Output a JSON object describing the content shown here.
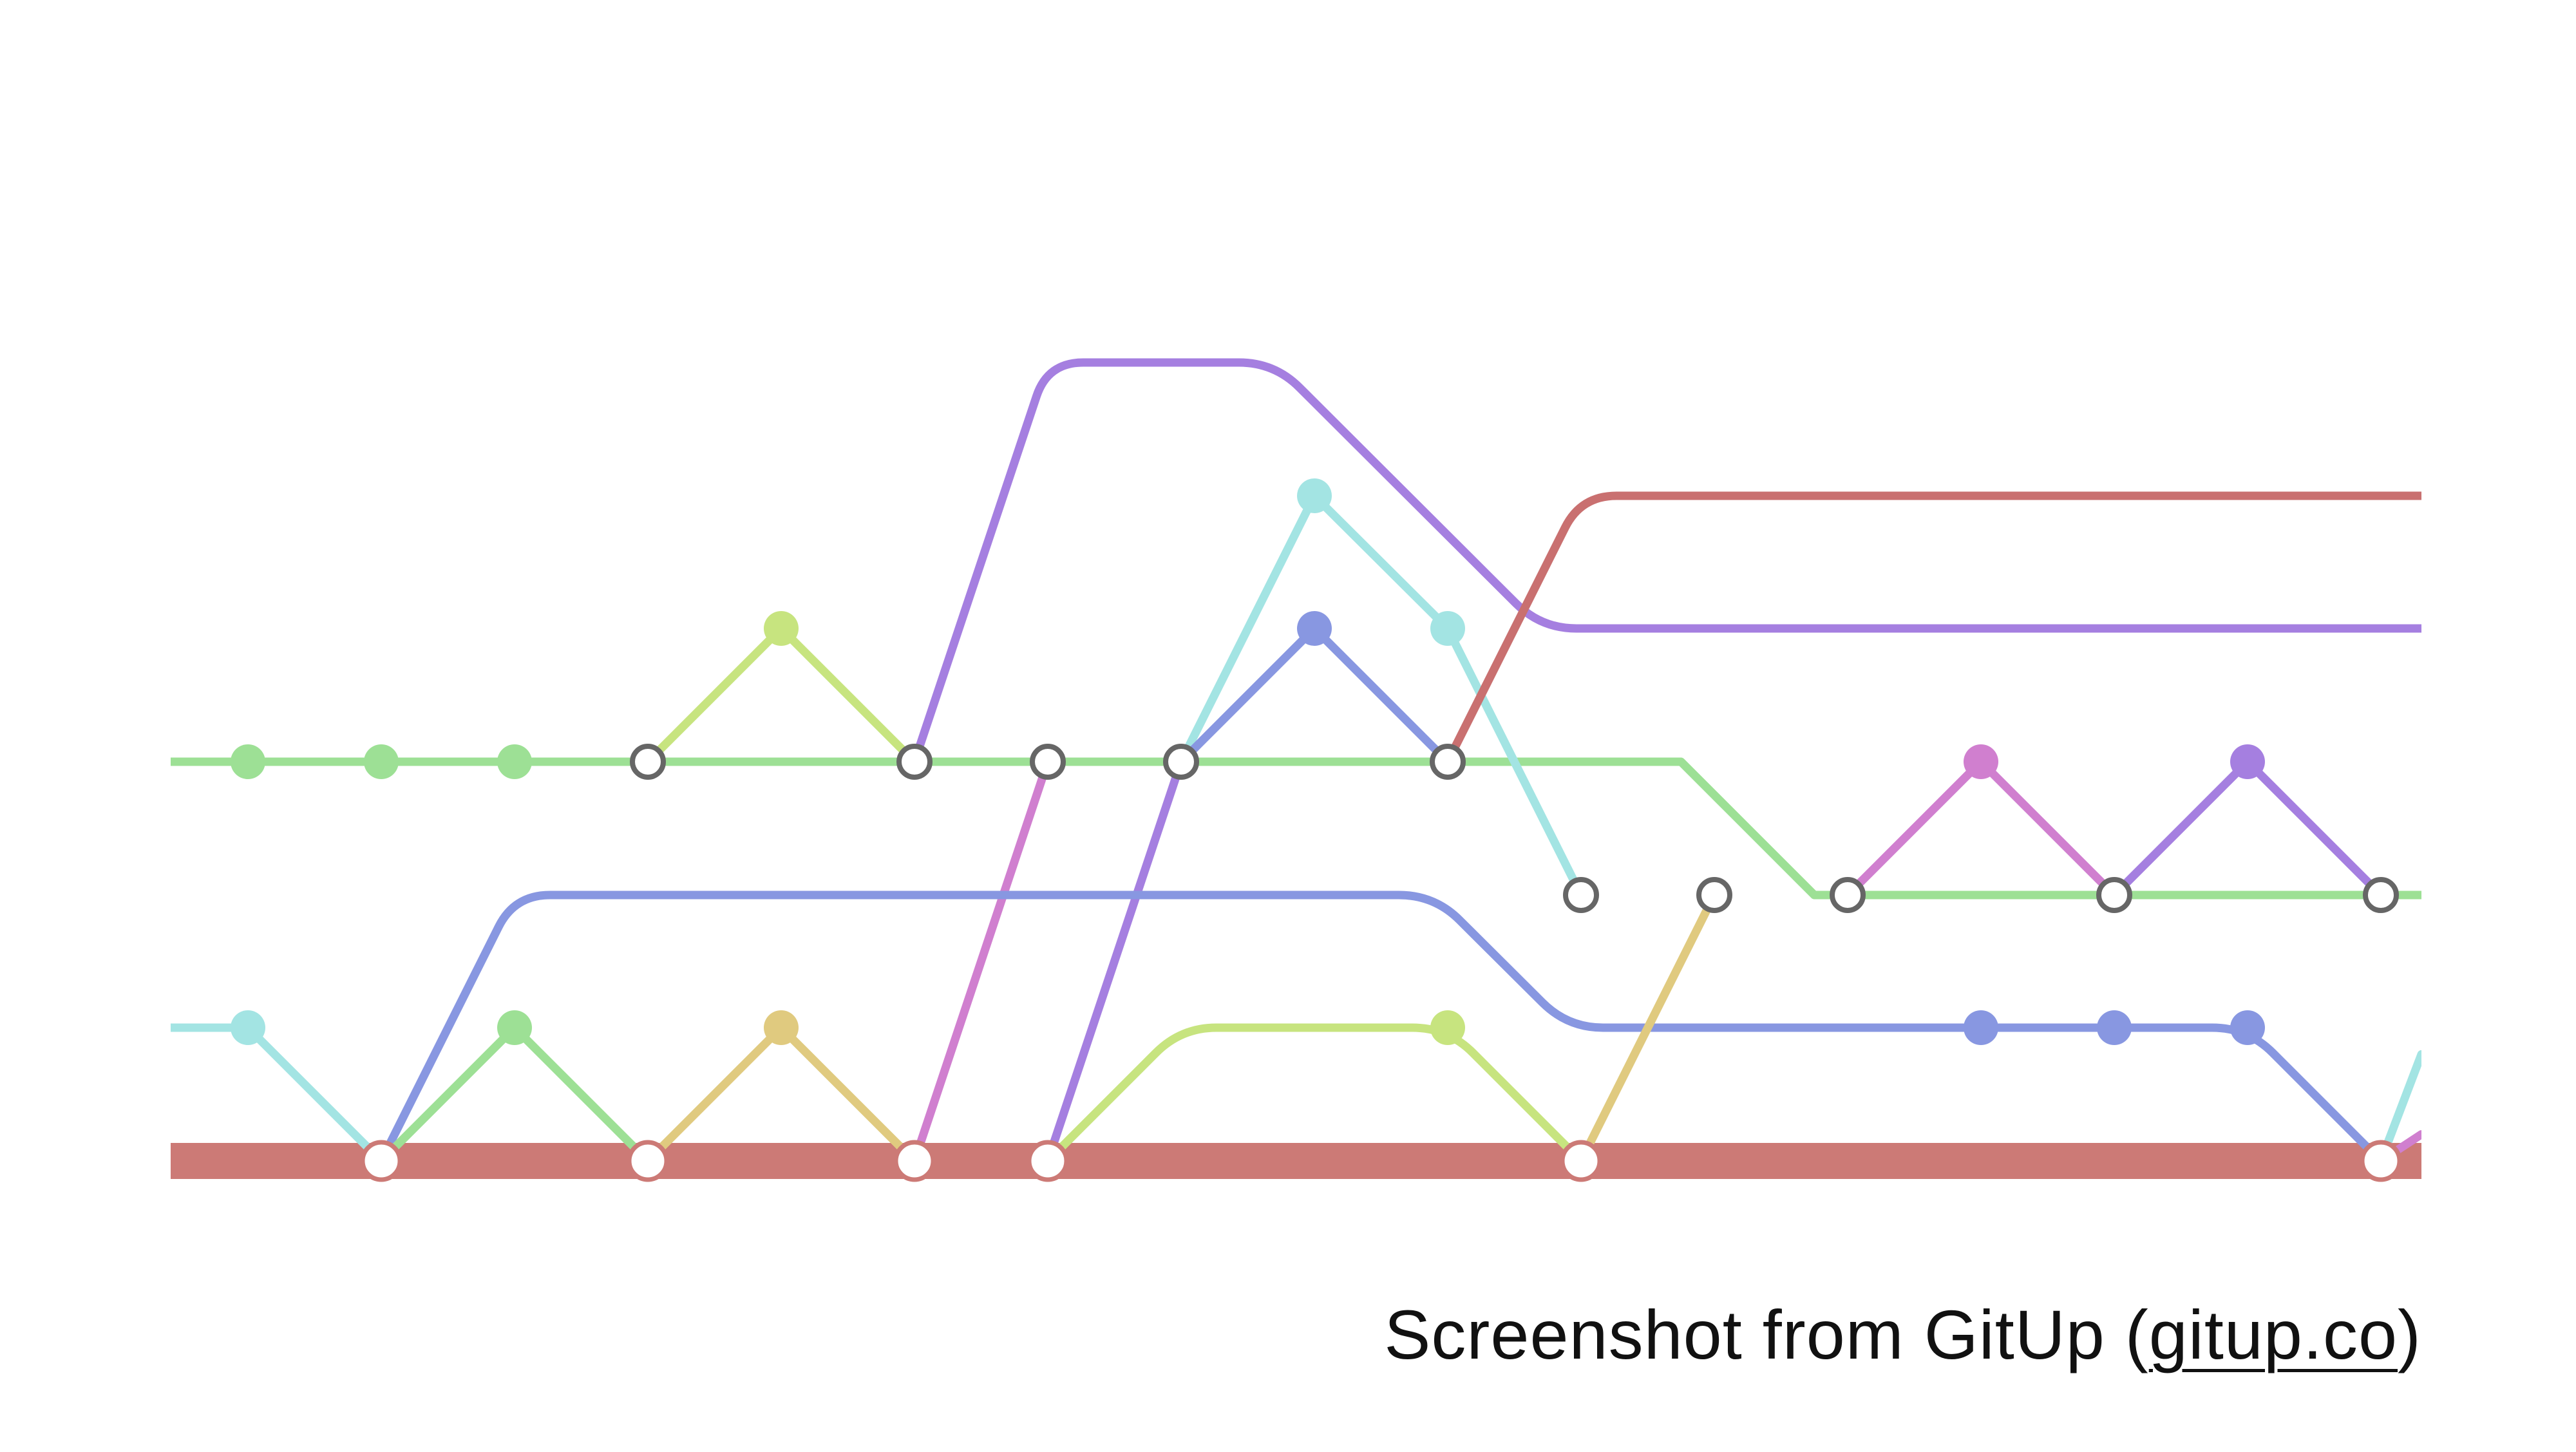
{
  "caption": {
    "text_before": "Screenshot from GitUp (",
    "link_text": "gitup.co",
    "text_after": ")"
  },
  "colors": {
    "trunk": "#cc7a76",
    "green": "#9de095",
    "lime": "#c7e47f",
    "cyan": "#a3e4e3",
    "blue": "#8897e1",
    "purple": "#a57fe0",
    "magenta": "#d07fcf",
    "gold": "#e0ca7f",
    "red": "#c97070",
    "merge_stroke": "#666666"
  },
  "graph": {
    "rows": {
      "r1": 0,
      "r2": 1,
      "r3": 2,
      "r4": 3,
      "r5": 4,
      "r6": 5,
      "trunk": 6
    },
    "columns": 17,
    "lines": [
      {
        "color": "green",
        "points": [
          [
            -0.6,
            "r4"
          ],
          [
            3,
            "r4"
          ],
          [
            10.3,
            "r4"
          ],
          [
            10.75,
            "r4"
          ],
          [
            11.75,
            "r5"
          ],
          [
            16.3,
            "r5"
          ]
        ]
      },
      {
        "color": "lime",
        "points": [
          [
            3,
            "r4"
          ],
          [
            4,
            "r3"
          ],
          [
            5,
            "r4"
          ]
        ]
      },
      {
        "color": "purple",
        "points": [
          [
            5,
            "r4"
          ],
          [
            6,
            "r1"
          ],
          [
            7.7,
            "r1"
          ],
          [
            9.7,
            "r3"
          ],
          [
            16.3,
            "r3"
          ]
        ],
        "rounded": true
      },
      {
        "color": "magenta",
        "points": [
          [
            5,
            "trunk"
          ],
          [
            6,
            "r4"
          ]
        ]
      },
      {
        "color": "purple",
        "points": [
          [
            6,
            "trunk"
          ],
          [
            7,
            "r4"
          ]
        ]
      },
      {
        "color": "cyan",
        "points": [
          [
            7,
            "r4"
          ],
          [
            8,
            "r2"
          ],
          [
            9,
            "r3"
          ],
          [
            10,
            "r5"
          ]
        ]
      },
      {
        "color": "blue",
        "points": [
          [
            7,
            "r4"
          ],
          [
            8,
            "r3"
          ],
          [
            9,
            "r4"
          ]
        ]
      },
      {
        "color": "red",
        "points": [
          [
            9,
            "r4"
          ],
          [
            10,
            "r2"
          ],
          [
            16.3,
            "r2"
          ]
        ],
        "rounded": true
      },
      {
        "color": "cyan",
        "points": [
          [
            -0.6,
            "r6"
          ],
          [
            0,
            "r6"
          ],
          [
            1,
            "trunk"
          ]
        ]
      },
      {
        "color": "blue",
        "points": [
          [
            1,
            "trunk"
          ],
          [
            2,
            "r5"
          ],
          [
            8.9,
            "r5"
          ],
          [
            9.9,
            "r6"
          ],
          [
            15,
            "r6"
          ],
          [
            16,
            "trunk"
          ]
        ],
        "rounded": true
      },
      {
        "color": "green",
        "points": [
          [
            1,
            "trunk"
          ],
          [
            2,
            "r6"
          ],
          [
            3,
            "trunk"
          ]
        ]
      },
      {
        "color": "gold",
        "points": [
          [
            3,
            "trunk"
          ],
          [
            4,
            "r6"
          ],
          [
            5,
            "trunk"
          ]
        ]
      },
      {
        "color": "lime",
        "points": [
          [
            6,
            "trunk"
          ],
          [
            7,
            "r6"
          ],
          [
            9,
            "r6"
          ],
          [
            10,
            "trunk"
          ]
        ],
        "rounded": true
      },
      {
        "color": "gold",
        "points": [
          [
            10,
            "trunk"
          ],
          [
            11,
            "r5"
          ]
        ]
      },
      {
        "color": "magenta",
        "points": [
          [
            12,
            "r5"
          ],
          [
            13,
            "r4"
          ],
          [
            14,
            "r5"
          ]
        ]
      },
      {
        "color": "purple",
        "points": [
          [
            14,
            "r5"
          ],
          [
            15,
            "r4"
          ],
          [
            16,
            "r5"
          ]
        ]
      },
      {
        "color": "cyan",
        "points": [
          [
            16,
            "trunk"
          ],
          [
            16.4,
            "r6.2"
          ]
        ]
      },
      {
        "color": "magenta",
        "points": [
          [
            16,
            "trunk"
          ],
          [
            16.4,
            "r6.8"
          ]
        ]
      }
    ],
    "commits": [
      {
        "col": 0,
        "row": "r4",
        "color": "green"
      },
      {
        "col": 1,
        "row": "r4",
        "color": "green"
      },
      {
        "col": 2,
        "row": "r4",
        "color": "green"
      },
      {
        "col": 3,
        "row": "r4",
        "merge": true
      },
      {
        "col": 4,
        "row": "r3",
        "color": "lime"
      },
      {
        "col": 5,
        "row": "r4",
        "merge": true
      },
      {
        "col": 6,
        "row": "r4",
        "merge": true
      },
      {
        "col": 7,
        "row": "r4",
        "merge": true
      },
      {
        "col": 8,
        "row": "r2",
        "color": "cyan"
      },
      {
        "col": 8,
        "row": "r3",
        "color": "blue"
      },
      {
        "col": 9,
        "row": "r3",
        "color": "cyan"
      },
      {
        "col": 9,
        "row": "r4",
        "merge": true
      },
      {
        "col": 10,
        "row": "r5",
        "merge": true
      },
      {
        "col": 11,
        "row": "r5",
        "merge": true
      },
      {
        "col": 12,
        "row": "r5",
        "merge": true
      },
      {
        "col": 13,
        "row": "r4",
        "color": "magenta"
      },
      {
        "col": 14,
        "row": "r5",
        "merge": true
      },
      {
        "col": 15,
        "row": "r4",
        "color": "purple"
      },
      {
        "col": 16,
        "row": "r5",
        "merge": true
      },
      {
        "col": 0,
        "row": "r6",
        "color": "cyan"
      },
      {
        "col": 2,
        "row": "r6",
        "color": "green"
      },
      {
        "col": 4,
        "row": "r6",
        "color": "gold"
      },
      {
        "col": 9,
        "row": "r6",
        "color": "lime"
      },
      {
        "col": 13,
        "row": "r6",
        "color": "blue"
      },
      {
        "col": 14,
        "row": "r6",
        "color": "blue"
      },
      {
        "col": 15,
        "row": "r6",
        "color": "blue"
      },
      {
        "col": 1,
        "row": "trunk",
        "trunk": true
      },
      {
        "col": 3,
        "row": "trunk",
        "trunk": true
      },
      {
        "col": 5,
        "row": "trunk",
        "trunk": true
      },
      {
        "col": 6,
        "row": "trunk",
        "trunk": true
      },
      {
        "col": 10,
        "row": "trunk",
        "trunk": true
      },
      {
        "col": 16,
        "row": "trunk",
        "trunk": true
      }
    ]
  }
}
